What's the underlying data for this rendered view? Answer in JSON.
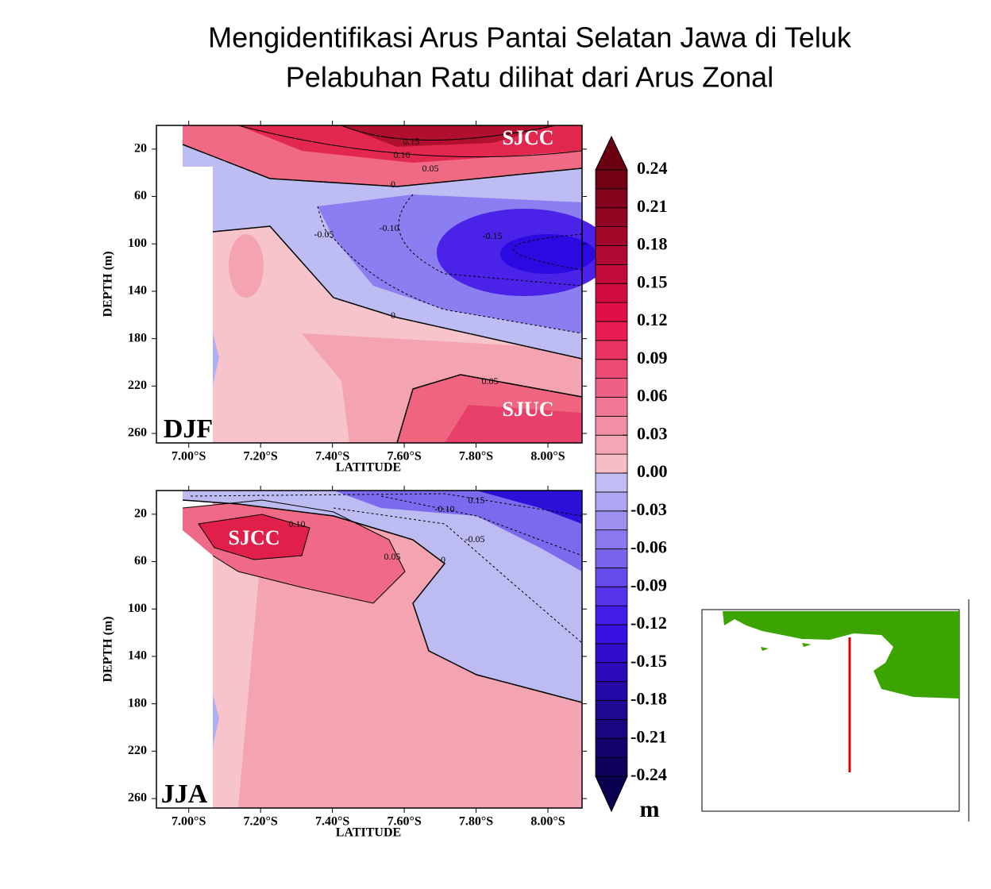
{
  "title": [
    "Mengidentifikasi Arus Pantai Selatan Jawa di Teluk",
    "Pelabuhan Ratu dilihat dari Arus Zonal"
  ],
  "chart_data": [
    {
      "type": "contour",
      "panel_label": "DJF",
      "xlabel": "LATITUDE",
      "ylabel": "DEPTH (m)",
      "xlim": [
        6.91,
        8.095
      ],
      "xticks": [
        {
          "value": 7.0,
          "label": "7.00°S"
        },
        {
          "value": 7.2,
          "label": "7.20°S"
        },
        {
          "value": 7.4,
          "label": "7.40°S"
        },
        {
          "value": 7.6,
          "label": "7.60°S"
        },
        {
          "value": 7.8,
          "label": "7.80°S"
        },
        {
          "value": 8.0,
          "label": "8.00°S"
        }
      ],
      "ylim": [
        0,
        268
      ],
      "y_inverted": true,
      "yticks": [
        20,
        60,
        100,
        140,
        180,
        220,
        260
      ],
      "annotations": [
        "SJCC",
        "SJUC"
      ],
      "contour_labels": [
        "0.15",
        "0.10",
        "0.05",
        "0",
        "-0.05",
        "-0.10",
        "-0.15",
        "0",
        "0.05"
      ]
    },
    {
      "type": "contour",
      "panel_label": "JJA",
      "xlabel": "LATITUDE",
      "ylabel": "DEPTH (m)",
      "xlim": [
        6.91,
        8.095
      ],
      "xticks": [
        {
          "value": 7.0,
          "label": "7.00°S"
        },
        {
          "value": 7.2,
          "label": "7.20°S"
        },
        {
          "value": 7.4,
          "label": "7.40°S"
        },
        {
          "value": 7.6,
          "label": "7.60°S"
        },
        {
          "value": 7.8,
          "label": "7.80°S"
        },
        {
          "value": 8.0,
          "label": "8.00°S"
        }
      ],
      "ylim": [
        0,
        268
      ],
      "y_inverted": true,
      "yticks": [
        20,
        60,
        100,
        140,
        180,
        220,
        260
      ],
      "annotations": [
        "SJCC"
      ],
      "contour_labels": [
        "0.15",
        "-0.10",
        "0.10",
        "-0.05",
        "0.05",
        "0"
      ]
    }
  ],
  "colorbar": {
    "unit": "m",
    "lim": [
      -0.24,
      0.24
    ],
    "ticks": [
      0.24,
      0.21,
      0.18,
      0.15,
      0.12,
      0.09,
      0.06,
      0.03,
      {
        "value": 0,
        "label": "0.00"
      },
      -0.03,
      -0.06,
      -0.09,
      -0.12,
      -0.15,
      -0.18,
      -0.21,
      -0.24
    ]
  }
}
